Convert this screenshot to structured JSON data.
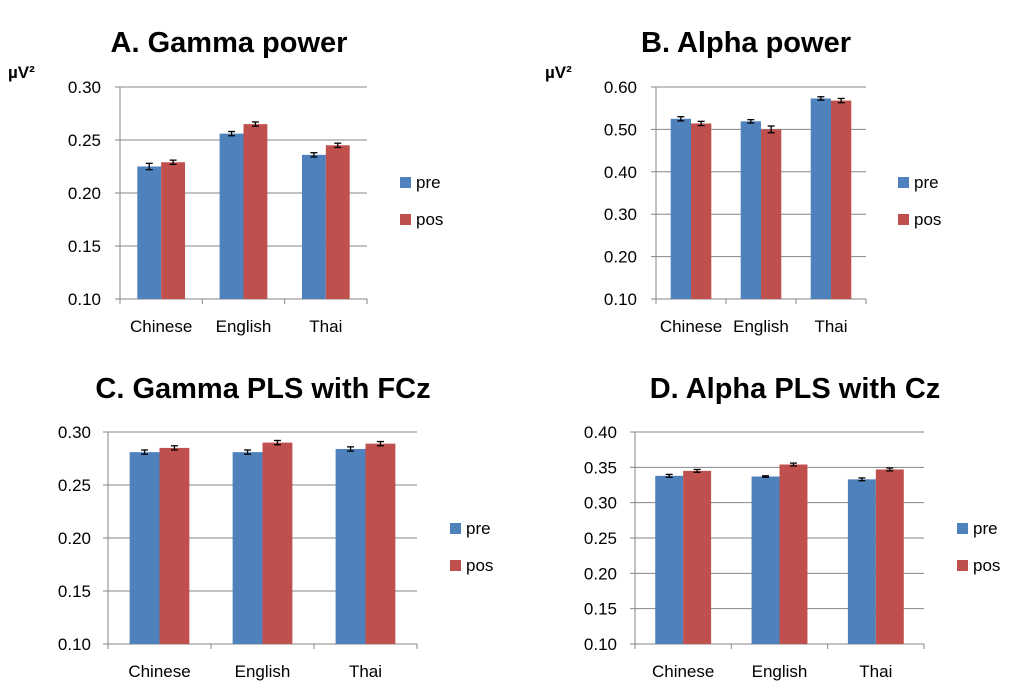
{
  "chart_data": [
    {
      "type": "bar",
      "title": "A. Gamma power",
      "ylabel": "µV²",
      "categories": [
        "Chinese",
        "English",
        "Thai"
      ],
      "ylim": [
        0.1,
        0.3
      ],
      "yticks": [
        "0.10",
        "0.15",
        "0.20",
        "0.25",
        "0.30"
      ],
      "ytick_values": [
        0.1,
        0.15,
        0.2,
        0.25,
        0.3
      ],
      "series": [
        {
          "name": "pre",
          "color": "#4F81BD",
          "values": [
            0.225,
            0.256,
            0.236
          ],
          "errors": [
            0.003,
            0.002,
            0.002
          ]
        },
        {
          "name": "pos",
          "color": "#C0504D",
          "values": [
            0.229,
            0.265,
            0.245
          ],
          "errors": [
            0.002,
            0.002,
            0.002
          ]
        }
      ]
    },
    {
      "type": "bar",
      "title": "B. Alpha power",
      "ylabel": "µV²",
      "categories": [
        "Chinese",
        "English",
        "Thai"
      ],
      "ylim": [
        0.1,
        0.6
      ],
      "yticks": [
        "0.10",
        "0.20",
        "0.30",
        "0.40",
        "0.50",
        "0.60"
      ],
      "ytick_values": [
        0.1,
        0.2,
        0.3,
        0.4,
        0.5,
        0.6
      ],
      "series": [
        {
          "name": "pre",
          "color": "#4F81BD",
          "values": [
            0.525,
            0.519,
            0.573
          ],
          "errors": [
            0.005,
            0.004,
            0.004
          ]
        },
        {
          "name": "pos",
          "color": "#C0504D",
          "values": [
            0.514,
            0.5,
            0.568
          ],
          "errors": [
            0.005,
            0.008,
            0.005
          ]
        }
      ]
    },
    {
      "type": "bar",
      "title": "C. Gamma PLS with FCz",
      "ylabel": "",
      "categories": [
        "Chinese",
        "English",
        "Thai"
      ],
      "ylim": [
        0.1,
        0.3
      ],
      "yticks": [
        "0.10",
        "0.15",
        "0.20",
        "0.25",
        "0.30"
      ],
      "ytick_values": [
        0.1,
        0.15,
        0.2,
        0.25,
        0.3
      ],
      "series": [
        {
          "name": "pre",
          "color": "#4F81BD",
          "values": [
            0.281,
            0.281,
            0.284
          ],
          "errors": [
            0.002,
            0.002,
            0.002
          ]
        },
        {
          "name": "pos",
          "color": "#C0504D",
          "values": [
            0.285,
            0.29,
            0.289
          ],
          "errors": [
            0.002,
            0.002,
            0.002
          ]
        }
      ]
    },
    {
      "type": "bar",
      "title": "D. Alpha PLS with Cz",
      "ylabel": "",
      "categories": [
        "Chinese",
        "English",
        "Thai"
      ],
      "ylim": [
        0.1,
        0.4
      ],
      "yticks": [
        "0.10",
        "0.15",
        "0.20",
        "0.25",
        "0.30",
        "0.35",
        "0.40"
      ],
      "ytick_values": [
        0.1,
        0.15,
        0.2,
        0.25,
        0.3,
        0.35,
        0.4
      ],
      "series": [
        {
          "name": "pre",
          "color": "#4F81BD",
          "values": [
            0.338,
            0.337,
            0.333
          ],
          "errors": [
            0.002,
            0.001,
            0.002
          ]
        },
        {
          "name": "pos",
          "color": "#C0504D",
          "values": [
            0.345,
            0.354,
            0.347
          ],
          "errors": [
            0.002,
            0.002,
            0.002
          ]
        }
      ]
    }
  ]
}
